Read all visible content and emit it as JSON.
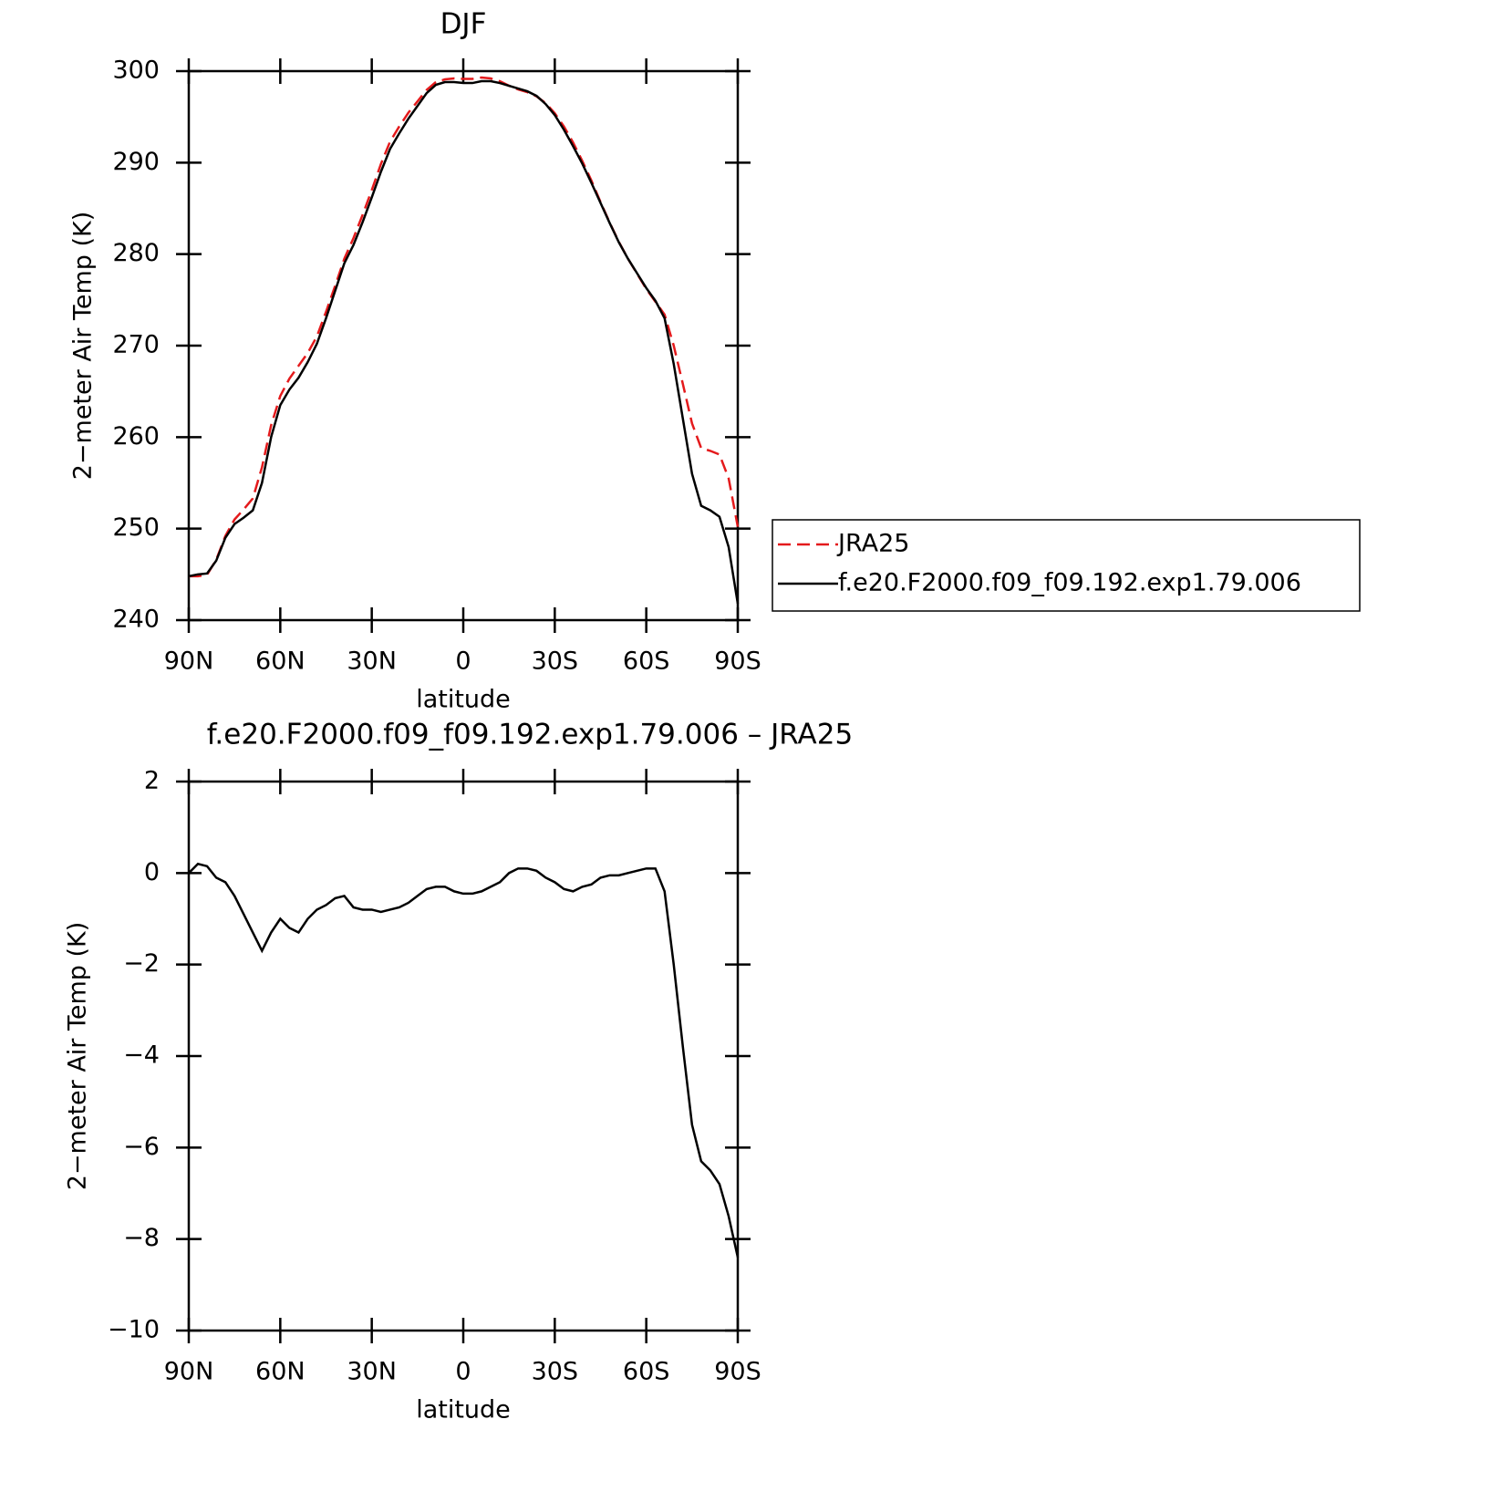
{
  "chart_data": [
    {
      "type": "line",
      "title": "DJF",
      "xlabel": "latitude",
      "ylabel": "2−meter Air Temp (K)",
      "x": [
        90,
        87,
        84,
        81,
        78,
        75,
        72,
        69,
        66,
        63,
        60,
        57,
        54,
        51,
        48,
        45,
        42,
        39,
        36,
        33,
        30,
        27,
        24,
        21,
        18,
        15,
        12,
        9,
        6,
        3,
        0,
        -3,
        -6,
        -9,
        -12,
        -15,
        -18,
        -21,
        -24,
        -27,
        -30,
        -33,
        -36,
        -39,
        -42,
        -45,
        -48,
        -51,
        -54,
        -57,
        -60,
        -63,
        -66,
        -69,
        -72,
        -75,
        -78,
        -81,
        -84,
        -87,
        -90
      ],
      "series": [
        {
          "name": "JRA25",
          "color": "#e41a1c",
          "dash": "dashed",
          "values": [
            244.8,
            244.8,
            244.95,
            246.6,
            249.2,
            251.0,
            252.1,
            253.3,
            256.7,
            261.3,
            264.5,
            266.4,
            267.8,
            269.2,
            271.0,
            273.7,
            276.55,
            279.5,
            281.75,
            284.3,
            287.0,
            289.85,
            292.3,
            293.95,
            295.45,
            296.7,
            297.95,
            298.8,
            299.1,
            299.2,
            299.15,
            299.15,
            299.3,
            299.2,
            298.9,
            298.4,
            298.0,
            297.7,
            297.25,
            296.5,
            295.4,
            293.95,
            292.2,
            290.2,
            288.05,
            285.7,
            283.45,
            281.35,
            279.5,
            277.85,
            276.2,
            274.8,
            273.4,
            270.0,
            265.8,
            261.5,
            258.8,
            258.5,
            258.1,
            255.5,
            250.2
          ]
        },
        {
          "name": "f.e20.F2000.f09_f09.192.exp1.79.006",
          "color": "#000000",
          "dash": "solid",
          "values": [
            244.8,
            245.0,
            245.1,
            246.5,
            249.0,
            250.5,
            251.2,
            252.0,
            255.0,
            260.0,
            263.5,
            265.2,
            266.5,
            268.2,
            270.2,
            273.0,
            276.0,
            279.0,
            281.0,
            283.5,
            286.2,
            289.0,
            291.5,
            293.2,
            294.8,
            296.2,
            297.6,
            298.5,
            298.8,
            298.8,
            298.7,
            298.7,
            298.9,
            298.9,
            298.7,
            298.4,
            298.1,
            297.8,
            297.3,
            296.4,
            295.2,
            293.6,
            291.8,
            289.9,
            287.8,
            285.6,
            283.4,
            281.3,
            279.5,
            277.9,
            276.3,
            274.9,
            273.0,
            268.0,
            262.0,
            256.0,
            252.5,
            252.0,
            251.3,
            248.0,
            241.8
          ]
        }
      ],
      "xlim": [
        90,
        -90
      ],
      "xticks": [
        {
          "value": 90,
          "label": "90N"
        },
        {
          "value": 60,
          "label": "60N"
        },
        {
          "value": 30,
          "label": "30N"
        },
        0,
        {
          "value": -30,
          "label": "30S"
        },
        {
          "value": -60,
          "label": "60S"
        },
        {
          "value": -90,
          "label": "90S"
        }
      ],
      "ylim": [
        240,
        300
      ],
      "yticks": [
        240,
        250,
        260,
        270,
        280,
        290,
        300
      ],
      "legend": "right"
    },
    {
      "type": "line",
      "title": "f.e20.F2000.f09_f09.192.exp1.79.006 – JRA25",
      "xlabel": "latitude",
      "ylabel": "2−meter Air Temp (K)",
      "x": [
        90,
        87,
        84,
        81,
        78,
        75,
        72,
        69,
        66,
        63,
        60,
        57,
        54,
        51,
        48,
        45,
        42,
        39,
        36,
        33,
        30,
        27,
        24,
        21,
        18,
        15,
        12,
        9,
        6,
        3,
        0,
        -3,
        -6,
        -9,
        -12,
        -15,
        -18,
        -21,
        -24,
        -27,
        -30,
        -33,
        -36,
        -39,
        -42,
        -45,
        -48,
        -51,
        -54,
        -57,
        -60,
        -63,
        -66,
        -69,
        -72,
        -75,
        -78,
        -81,
        -84,
        -87,
        -90
      ],
      "color": "#000000",
      "values": [
        0,
        0.2,
        0.15,
        -0.1,
        -0.2,
        -0.5,
        -0.9,
        -1.3,
        -1.7,
        -1.3,
        -1.0,
        -1.2,
        -1.3,
        -1.0,
        -0.8,
        -0.7,
        -0.55,
        -0.5,
        -0.75,
        -0.8,
        -0.8,
        -0.85,
        -0.8,
        -0.75,
        -0.65,
        -0.5,
        -0.35,
        -0.3,
        -0.3,
        -0.4,
        -0.45,
        -0.45,
        -0.4,
        -0.3,
        -0.2,
        0,
        0.1,
        0.1,
        0.05,
        -0.1,
        -0.2,
        -0.35,
        -0.4,
        -0.3,
        -0.25,
        -0.1,
        -0.05,
        -0.05,
        0,
        0.05,
        0.1,
        0.1,
        -0.4,
        -2.0,
        -3.8,
        -5.5,
        -6.3,
        -6.5,
        -6.8,
        -7.5,
        -8.4
      ],
      "xlim": [
        90,
        -90
      ],
      "xticks": [
        {
          "value": 90,
          "label": "90N"
        },
        {
          "value": 60,
          "label": "60N"
        },
        {
          "value": 30,
          "label": "30N"
        },
        0,
        {
          "value": -30,
          "label": "30S"
        },
        {
          "value": -60,
          "label": "60S"
        },
        {
          "value": -90,
          "label": "90S"
        }
      ],
      "ylim": [
        -10,
        2
      ],
      "yticks": [
        {
          "value": -10,
          "label": "−10"
        },
        {
          "value": -8,
          "label": "−8"
        },
        {
          "value": -6,
          "label": "−6"
        },
        {
          "value": -4,
          "label": "−4"
        },
        {
          "value": -2,
          "label": "−2"
        },
        0,
        2
      ]
    }
  ]
}
